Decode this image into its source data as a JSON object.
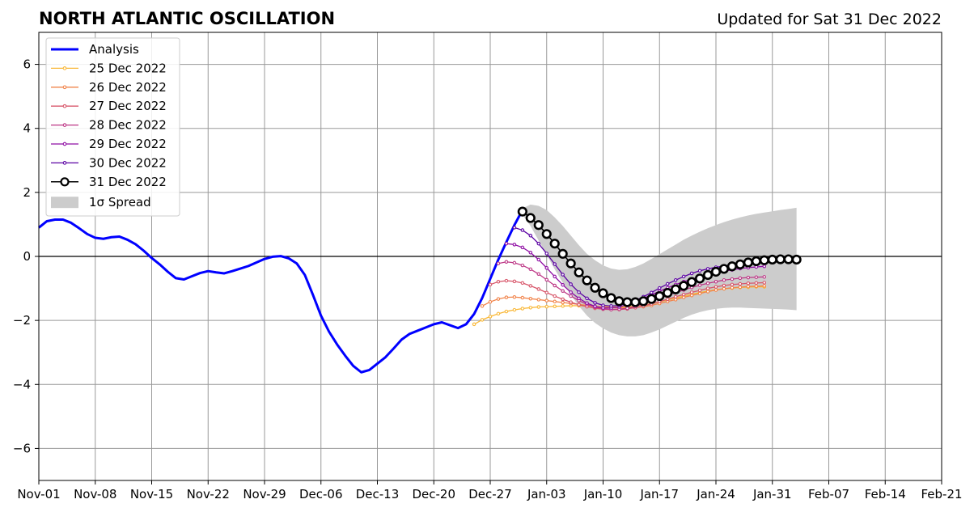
{
  "chart_data": {
    "type": "line",
    "title": "NORTH ATLANTIC OSCILLATION",
    "subtitle": "Updated for Sat 31 Dec 2022",
    "xlabel": "",
    "ylabel": "",
    "x_range": [
      "2022-11-01",
      "2023-02-21"
    ],
    "ylim": [
      -7,
      7
    ],
    "x_tick_labels": [
      "Nov-01",
      "Nov-08",
      "Nov-15",
      "Nov-22",
      "Nov-29",
      "Dec-06",
      "Dec-13",
      "Dec-20",
      "Dec-27",
      "Jan-03",
      "Jan-10",
      "Jan-17",
      "Jan-24",
      "Jan-31",
      "Feb-07",
      "Feb-14",
      "Feb-21"
    ],
    "y_ticks": [
      -6,
      -4,
      -2,
      0,
      2,
      4,
      6
    ],
    "y_tick_labels": [
      "−6",
      "−4",
      "−2",
      "0",
      "2",
      "4",
      "6"
    ],
    "grid": true,
    "zero_line": true,
    "legend_position": "top-left",
    "analysis": {
      "name": "Analysis",
      "color": "#0000ff",
      "start_date": "2022-11-01",
      "values": [
        0.9,
        1.1,
        1.15,
        1.15,
        1.05,
        0.88,
        0.7,
        0.58,
        0.55,
        0.6,
        0.62,
        0.52,
        0.38,
        0.18,
        -0.05,
        -0.25,
        -0.48,
        -0.68,
        -0.72,
        -0.62,
        -0.52,
        -0.46,
        -0.5,
        -0.53,
        -0.46,
        -0.38,
        -0.3,
        -0.19,
        -0.08,
        -0.01,
        0.01,
        -0.06,
        -0.22,
        -0.58,
        -1.2,
        -1.85,
        -2.35,
        -2.75,
        -3.1,
        -3.42,
        -3.62,
        -3.55,
        -3.35,
        -3.15,
        -2.88,
        -2.6,
        -2.42,
        -2.32,
        -2.22,
        -2.12,
        -2.06,
        -2.15,
        -2.24,
        -2.12,
        -1.8,
        -1.3,
        -0.7,
        -0.1,
        0.45,
        0.98,
        1.45
      ]
    },
    "forecasts": [
      {
        "name": "25 Dec 2022",
        "color": "#f9b838",
        "start_date": "2022-12-25",
        "values": [
          -2.12,
          -1.98,
          -1.88,
          -1.79,
          -1.72,
          -1.67,
          -1.63,
          -1.6,
          -1.58,
          -1.57,
          -1.56,
          -1.55,
          -1.54,
          -1.54,
          -1.55,
          -1.56,
          -1.57,
          -1.58,
          -1.58,
          -1.57,
          -1.55,
          -1.52,
          -1.48,
          -1.42,
          -1.36,
          -1.3,
          -1.24,
          -1.18,
          -1.13,
          -1.08,
          -1.04,
          -1.01,
          -0.99,
          -0.97,
          -0.96,
          -0.95,
          -0.95
        ]
      },
      {
        "name": "26 Dec 2022",
        "color": "#f1844b",
        "start_date": "2022-12-26",
        "values": [
          -1.55,
          -1.42,
          -1.33,
          -1.28,
          -1.27,
          -1.29,
          -1.32,
          -1.35,
          -1.38,
          -1.41,
          -1.44,
          -1.47,
          -1.5,
          -1.53,
          -1.56,
          -1.58,
          -1.6,
          -1.61,
          -1.61,
          -1.6,
          -1.57,
          -1.53,
          -1.47,
          -1.41,
          -1.35,
          -1.28,
          -1.22,
          -1.16,
          -1.1,
          -1.05,
          -1.01,
          -0.98,
          -0.96,
          -0.94,
          -0.93,
          -0.92
        ]
      },
      {
        "name": "27 Dec 2022",
        "color": "#d8576b",
        "start_date": "2022-12-27",
        "values": [
          -0.88,
          -0.79,
          -0.76,
          -0.78,
          -0.83,
          -0.92,
          -1.02,
          -1.13,
          -1.24,
          -1.34,
          -1.43,
          -1.51,
          -1.57,
          -1.62,
          -1.65,
          -1.66,
          -1.66,
          -1.64,
          -1.6,
          -1.55,
          -1.48,
          -1.41,
          -1.34,
          -1.26,
          -1.19,
          -1.12,
          -1.06,
          -1.0,
          -0.95,
          -0.91,
          -0.88,
          -0.86,
          -0.84,
          -0.83,
          -0.82
        ]
      },
      {
        "name": "28 Dec 2022",
        "color": "#bd3786",
        "start_date": "2022-12-28",
        "values": [
          -0.22,
          -0.17,
          -0.2,
          -0.28,
          -0.4,
          -0.55,
          -0.73,
          -0.91,
          -1.08,
          -1.24,
          -1.38,
          -1.5,
          -1.59,
          -1.64,
          -1.66,
          -1.65,
          -1.62,
          -1.56,
          -1.49,
          -1.4,
          -1.31,
          -1.22,
          -1.13,
          -1.05,
          -0.97,
          -0.9,
          -0.84,
          -0.79,
          -0.74,
          -0.71,
          -0.68,
          -0.66,
          -0.65,
          -0.64
        ]
      },
      {
        "name": "29 Dec 2022",
        "color": "#8f0da4",
        "start_date": "2022-12-29",
        "values": [
          0.4,
          0.37,
          0.28,
          0.12,
          -0.1,
          -0.36,
          -0.63,
          -0.89,
          -1.12,
          -1.31,
          -1.46,
          -1.56,
          -1.61,
          -1.61,
          -1.58,
          -1.51,
          -1.42,
          -1.31,
          -1.2,
          -1.09,
          -0.98,
          -0.88,
          -0.79,
          -0.71,
          -0.63,
          -0.57,
          -0.51,
          -0.46,
          -0.42,
          -0.38,
          -0.35,
          -0.33,
          -0.31
        ]
      },
      {
        "name": "30 Dec 2022",
        "color": "#5b02a3",
        "start_date": "2022-12-30",
        "values": [
          0.9,
          0.82,
          0.65,
          0.4,
          0.09,
          -0.24,
          -0.57,
          -0.87,
          -1.12,
          -1.31,
          -1.45,
          -1.53,
          -1.55,
          -1.53,
          -1.47,
          -1.38,
          -1.26,
          -1.13,
          -0.99,
          -0.86,
          -0.74,
          -0.63,
          -0.53,
          -0.45,
          -0.39,
          -0.34,
          -0.3,
          -0.27,
          -0.25,
          -0.23,
          -0.21,
          -0.2
        ]
      },
      {
        "name": "31 Dec 2022",
        "color": "#000000",
        "start_date": "2022-12-31",
        "marker": "circle",
        "values": [
          1.4,
          1.2,
          0.98,
          0.7,
          0.4,
          0.08,
          -0.22,
          -0.5,
          -0.75,
          -0.98,
          -1.15,
          -1.3,
          -1.4,
          -1.43,
          -1.43,
          -1.4,
          -1.33,
          -1.24,
          -1.14,
          -1.03,
          -0.92,
          -0.8,
          -0.69,
          -0.58,
          -0.48,
          -0.39,
          -0.31,
          -0.25,
          -0.19,
          -0.15,
          -0.12,
          -0.1,
          -0.09,
          -0.09,
          -0.1
        ]
      }
    ],
    "spread": {
      "name": "1σ Spread",
      "color": "#cccccc",
      "start_date": "2022-12-31",
      "upper": [
        1.5,
        1.62,
        1.58,
        1.45,
        1.22,
        0.95,
        0.65,
        0.35,
        0.08,
        -0.12,
        -0.28,
        -0.38,
        -0.42,
        -0.4,
        -0.33,
        -0.22,
        -0.08,
        0.07,
        0.22,
        0.37,
        0.52,
        0.65,
        0.77,
        0.88,
        0.98,
        1.07,
        1.15,
        1.22,
        1.28,
        1.33,
        1.37,
        1.41,
        1.45,
        1.48,
        1.52
      ],
      "lower": [
        1.3,
        0.95,
        0.5,
        0.05,
        -0.4,
        -0.82,
        -1.2,
        -1.55,
        -1.85,
        -2.08,
        -2.25,
        -2.38,
        -2.46,
        -2.5,
        -2.5,
        -2.46,
        -2.38,
        -2.28,
        -2.16,
        -2.04,
        -1.92,
        -1.82,
        -1.74,
        -1.68,
        -1.64,
        -1.61,
        -1.6,
        -1.6,
        -1.61,
        -1.62,
        -1.63,
        -1.64,
        -1.65,
        -1.66,
        -1.68
      ]
    },
    "legend": [
      "Analysis",
      "25 Dec 2022",
      "26 Dec 2022",
      "27 Dec 2022",
      "28 Dec 2022",
      "29 Dec 2022",
      "30 Dec 2022",
      "31 Dec 2022",
      "1σ Spread"
    ]
  }
}
